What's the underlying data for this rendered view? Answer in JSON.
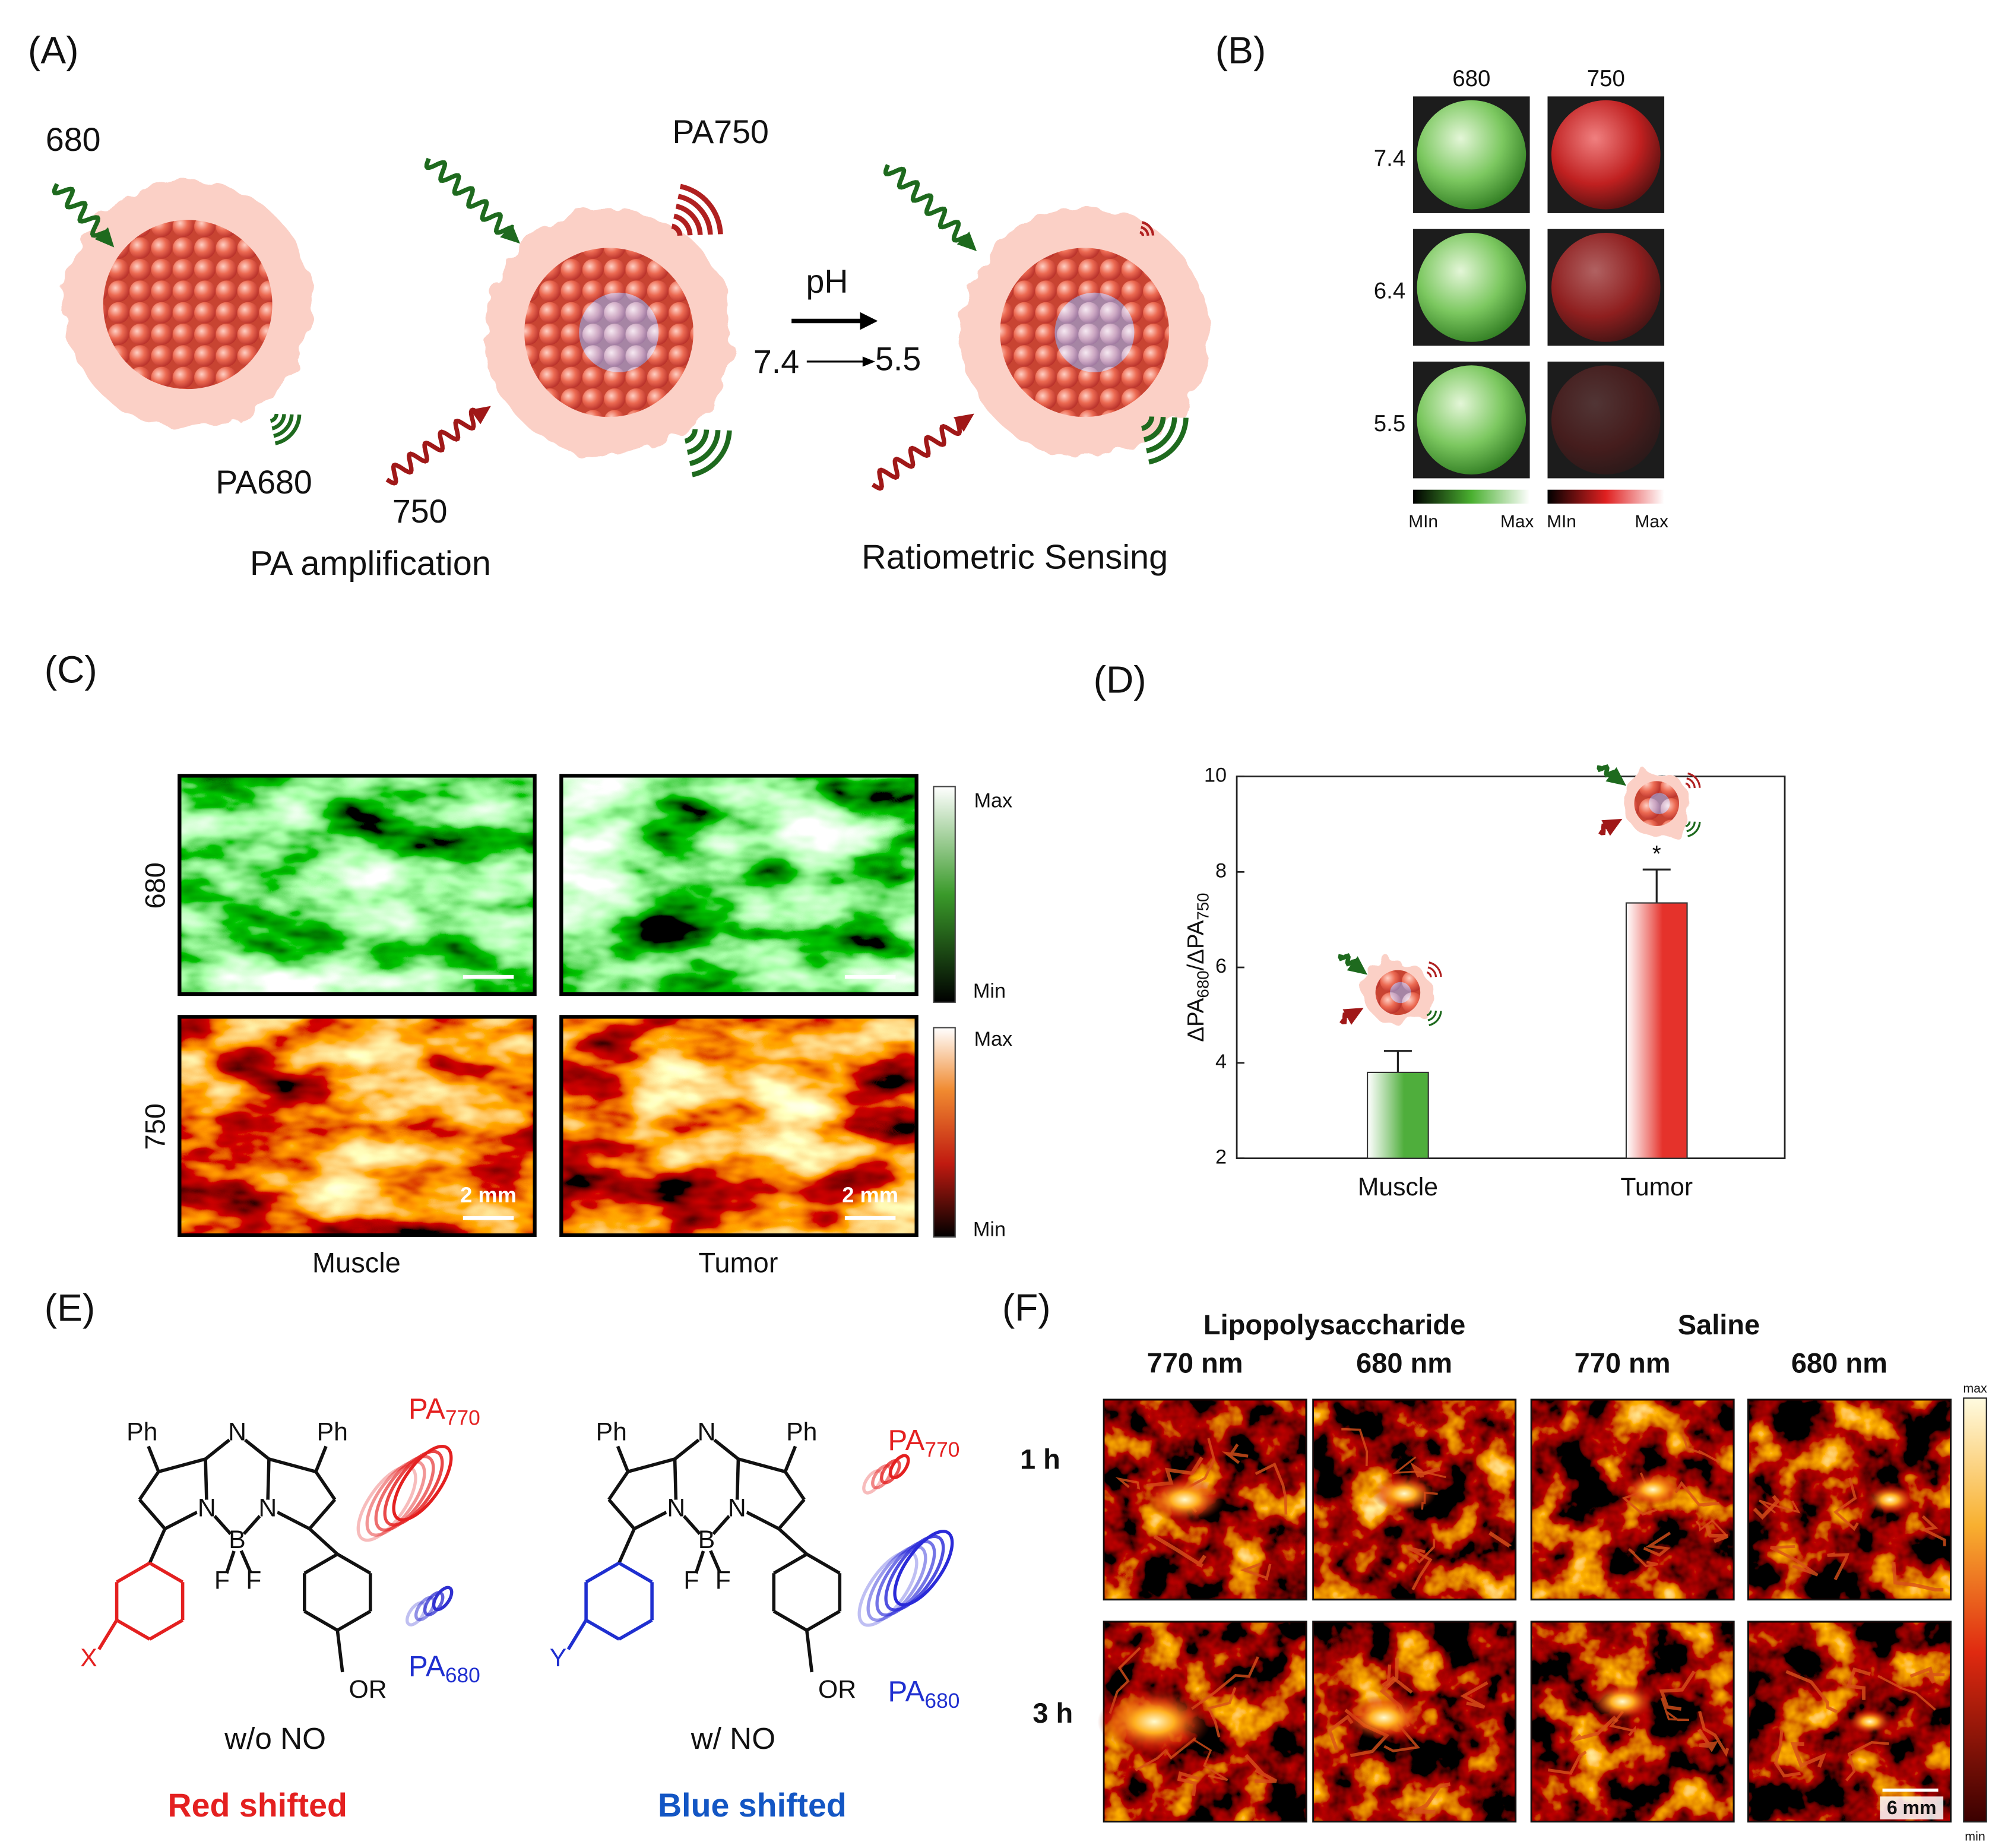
{
  "panel_a": {
    "label": "(A)",
    "excitation_680": "680",
    "emission_750": "PA750",
    "ph_label": "pH",
    "ph_from": "7.4",
    "ph_to": "5.5",
    "emission_680": "PA680",
    "excitation_750": "750",
    "caption_left": "PA amplification",
    "caption_right": "Ratiometric Sensing"
  },
  "panel_b": {
    "label": "(B)",
    "columns": [
      "680",
      "750"
    ],
    "rows": [
      "7.4",
      "6.4",
      "5.5"
    ],
    "colorbar_labels": [
      "MIn",
      "Max",
      "MIn",
      "Max"
    ]
  },
  "panel_c": {
    "label": "(C)",
    "rows": [
      "680",
      "750"
    ],
    "columns": [
      "Muscle",
      "Tumor"
    ],
    "colorbar_labels": [
      "Max",
      "Min",
      "Max",
      "Min"
    ],
    "scale_bars": [
      "2 mm",
      "2 mm"
    ]
  },
  "panel_d": {
    "label": "(D)"
  },
  "chart_data": {
    "type": "bar",
    "y_label": [
      "ΔPA",
      "680",
      "/ΔPA",
      "750"
    ],
    "categories": [
      "Muscle",
      "Tumor"
    ],
    "values": [
      3.8,
      7.35
    ],
    "errors": [
      0.45,
      0.7
    ],
    "colors": [
      "#4fae3c",
      "#e5322b"
    ],
    "ylim": [
      2,
      10
    ],
    "yticks": [
      2,
      4,
      6,
      8,
      10
    ],
    "annotation": {
      "text": "*",
      "category": "Tumor"
    }
  },
  "panel_e": {
    "label": "(E)",
    "molecules": [
      {
        "atoms": [
          "Ph",
          "Ph",
          "N",
          "N",
          "N",
          "B",
          "F",
          "F",
          "X",
          "OR"
        ],
        "signals": [
          [
            "PA",
            "770"
          ],
          [
            "PA",
            "680"
          ]
        ],
        "condition": "w/o NO",
        "result": "Red shifted"
      },
      {
        "atoms": [
          "Ph",
          "Ph",
          "N",
          "N",
          "N",
          "B",
          "F",
          "F",
          "Y",
          "OR"
        ],
        "signals": [
          [
            "PA",
            "770"
          ],
          [
            "PA",
            "680"
          ]
        ],
        "condition": "w/ NO",
        "result": "Blue shifted"
      }
    ]
  },
  "panel_f": {
    "label": "(F)",
    "groups": [
      "Lipopolysaccharide",
      "Saline"
    ],
    "wavelengths": [
      "770 nm",
      "680 nm",
      "770 nm",
      "680 nm"
    ],
    "times": [
      "1 h",
      "3 h"
    ],
    "scale_bar": "6 mm",
    "colorbar_labels": [
      "max",
      "min"
    ]
  }
}
